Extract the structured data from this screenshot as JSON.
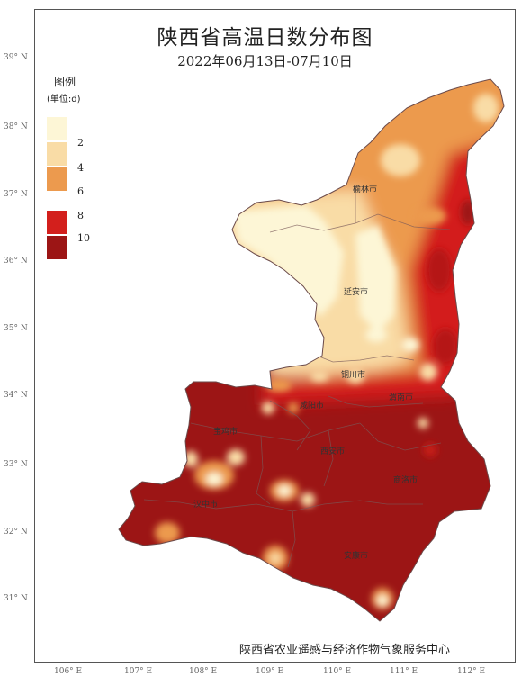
{
  "title": "陕西省高温日数分布图",
  "subtitle": "2022年06月13日-07月10日",
  "legend": {
    "title": "图例",
    "unit": "(单位:d)",
    "items": [
      {
        "label": "2",
        "color": "#fdf6d6"
      },
      {
        "label": "4",
        "color": "#f9dca6"
      },
      {
        "label": "6",
        "color": "#ec9a4e"
      },
      {
        "label": "8",
        "color": "#d31f1c"
      },
      {
        "label": "10",
        "color": "#9c1515"
      }
    ]
  },
  "lat_labels": [
    "39° N",
    "38° N",
    "37° N",
    "36° N",
    "35° N",
    "34° N",
    "33° N",
    "32° N",
    "31° N"
  ],
  "lon_labels": [
    "106° E",
    "107° E",
    "108° E",
    "109° E",
    "110° E",
    "111° E",
    "112° E"
  ],
  "cities": [
    "榆林市",
    "延安市",
    "铜川市",
    "渭南市",
    "咸阳市",
    "宝鸡市",
    "西安市",
    "商洛市",
    "汉中市",
    "安康市"
  ],
  "credit": "陕西省农业遥感与经济作物气象服务中心"
}
